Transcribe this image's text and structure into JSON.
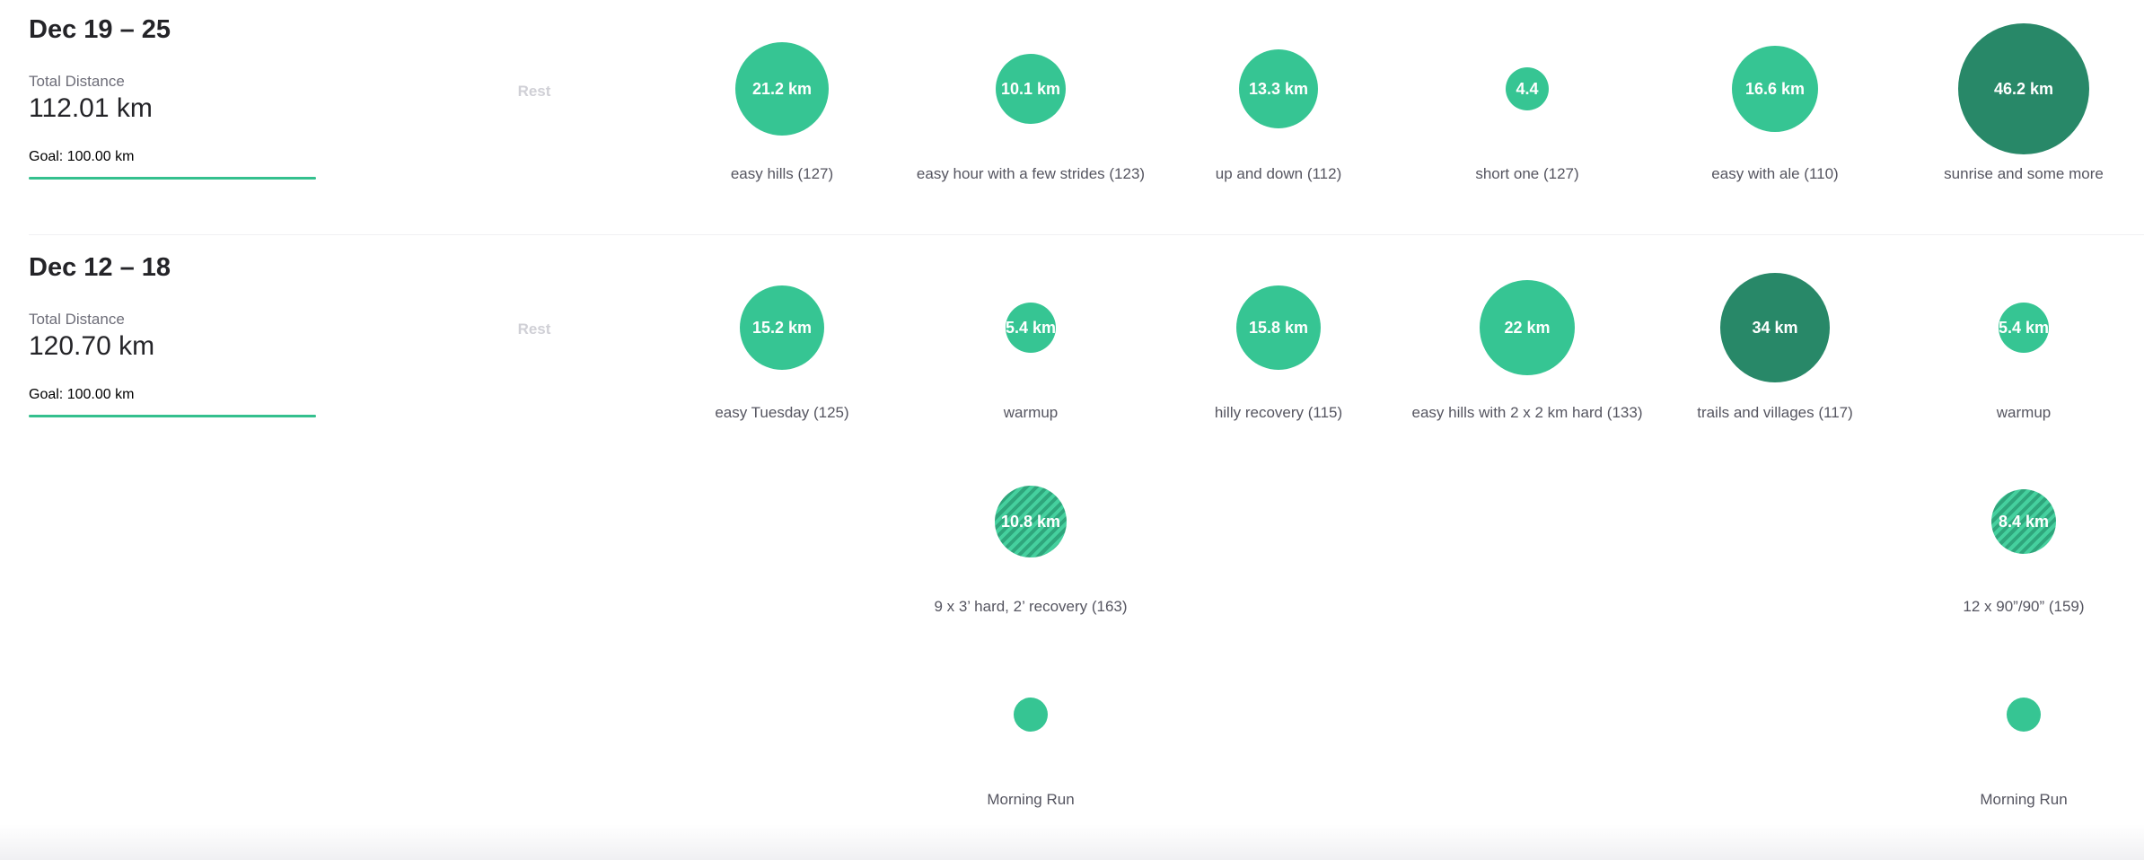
{
  "labels": {
    "total_distance": "Total Distance",
    "rest": "Rest"
  },
  "colors": {
    "accent": "#34c08e",
    "bubble_light": "#36c593",
    "bubble_dark": "#288868"
  },
  "weeks": [
    {
      "title": "Dec 19 – 25",
      "total_distance": "112.01 km",
      "goal": "Goal: 100.00 km",
      "goal_progress": 1.0,
      "activities": [
        {
          "label": "21.2 km",
          "name": "easy hills (127)"
        },
        {
          "label": "10.1 km",
          "name": "easy hour with a few strides (123)"
        },
        {
          "label": "13.3 km",
          "name": "up and down (112)"
        },
        {
          "label": "4.4",
          "name": "short one (127)"
        },
        {
          "label": "16.6 km",
          "name": "easy with ale (110)"
        },
        {
          "label": "46.2 km",
          "name": "sunrise and some more"
        }
      ]
    },
    {
      "title": "Dec 12 – 18",
      "total_distance": "120.70 km",
      "goal": "Goal: 100.00 km",
      "goal_progress": 1.0,
      "activities": [
        {
          "label": "15.2 km",
          "name": "easy Tuesday (125)"
        },
        {
          "label": "5.4 km",
          "name": "warmup"
        },
        {
          "label": "15.8 km",
          "name": "hilly recovery (115)"
        },
        {
          "label": "22 km",
          "name": "easy hills with 2 x 2 km hard (133)"
        },
        {
          "label": "34 km",
          "name": "trails and villages (117)"
        },
        {
          "label": "5.4 km",
          "name": "warmup"
        },
        {
          "label": "10.8 km",
          "name": "9 x 3’ hard, 2’ recovery (163)"
        },
        {
          "label": "8.4 km",
          "name": "12 x 90”/90” (159)"
        },
        {
          "label": "",
          "name": "Morning Run"
        },
        {
          "label": "",
          "name": "Morning Run"
        }
      ]
    }
  ]
}
